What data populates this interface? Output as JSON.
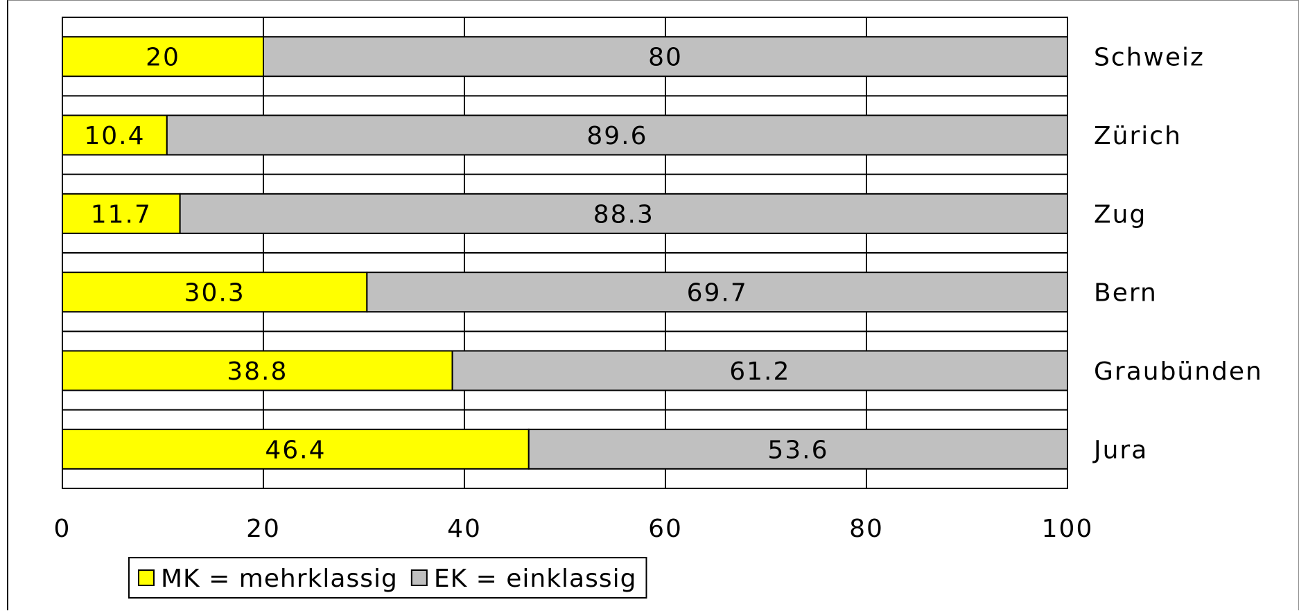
{
  "chart_data": {
    "type": "bar",
    "orientation": "horizontal",
    "stacked": true,
    "categories": [
      "Schweiz",
      "Zürich",
      "Zug",
      "Bern",
      "Graubünden",
      "Jura"
    ],
    "series": [
      {
        "name": "MK = mehrklassig",
        "color": "#ffff00",
        "values": [
          20,
          10.4,
          11.7,
          30.3,
          38.8,
          46.4
        ],
        "labels": [
          "20",
          "10.4",
          "11.7",
          "30.3",
          "38.8",
          "46.4"
        ]
      },
      {
        "name": "EK = einklassig",
        "color": "#c0c0c0",
        "values": [
          80,
          89.6,
          88.3,
          69.7,
          61.2,
          53.6
        ],
        "labels": [
          "80",
          "89.6",
          "88.3",
          "69.7",
          "61.2",
          "53.6"
        ]
      }
    ],
    "xlim": [
      0,
      100
    ],
    "xticks": [
      "0",
      "20",
      "40",
      "60",
      "80",
      "100"
    ],
    "xlabel": "",
    "ylabel": "",
    "title": "",
    "grid": true,
    "category_label_side": "right",
    "legend_position": "bottom-left"
  }
}
